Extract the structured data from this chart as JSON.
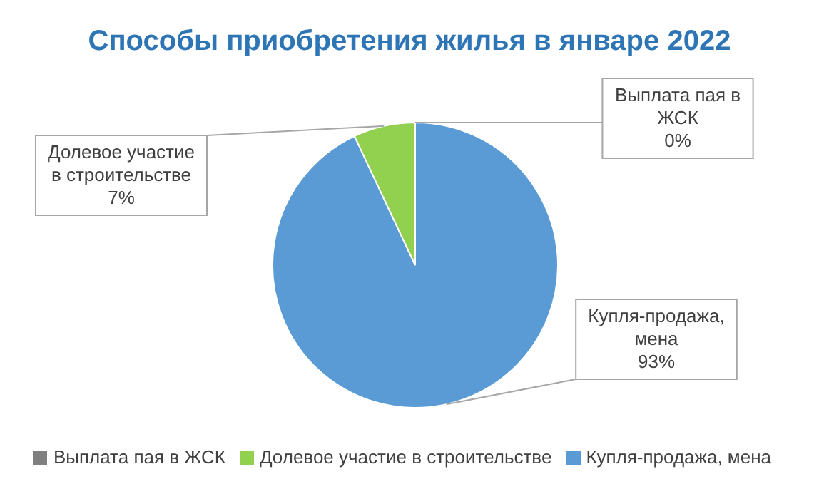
{
  "chart_data": {
    "type": "pie",
    "title": "Способы приобретения жилья в январе 2022",
    "categories": [
      "Купля-продажа, мена",
      "Долевое участие в строительстве",
      "Выплата пая в ЖСК"
    ],
    "values": [
      93,
      7,
      0
    ],
    "value_labels": [
      "93%",
      "7%",
      "0%"
    ],
    "colors": [
      "#5b9bd5",
      "#92d050",
      "#7f7f7f"
    ],
    "legend": "bottom"
  }
}
